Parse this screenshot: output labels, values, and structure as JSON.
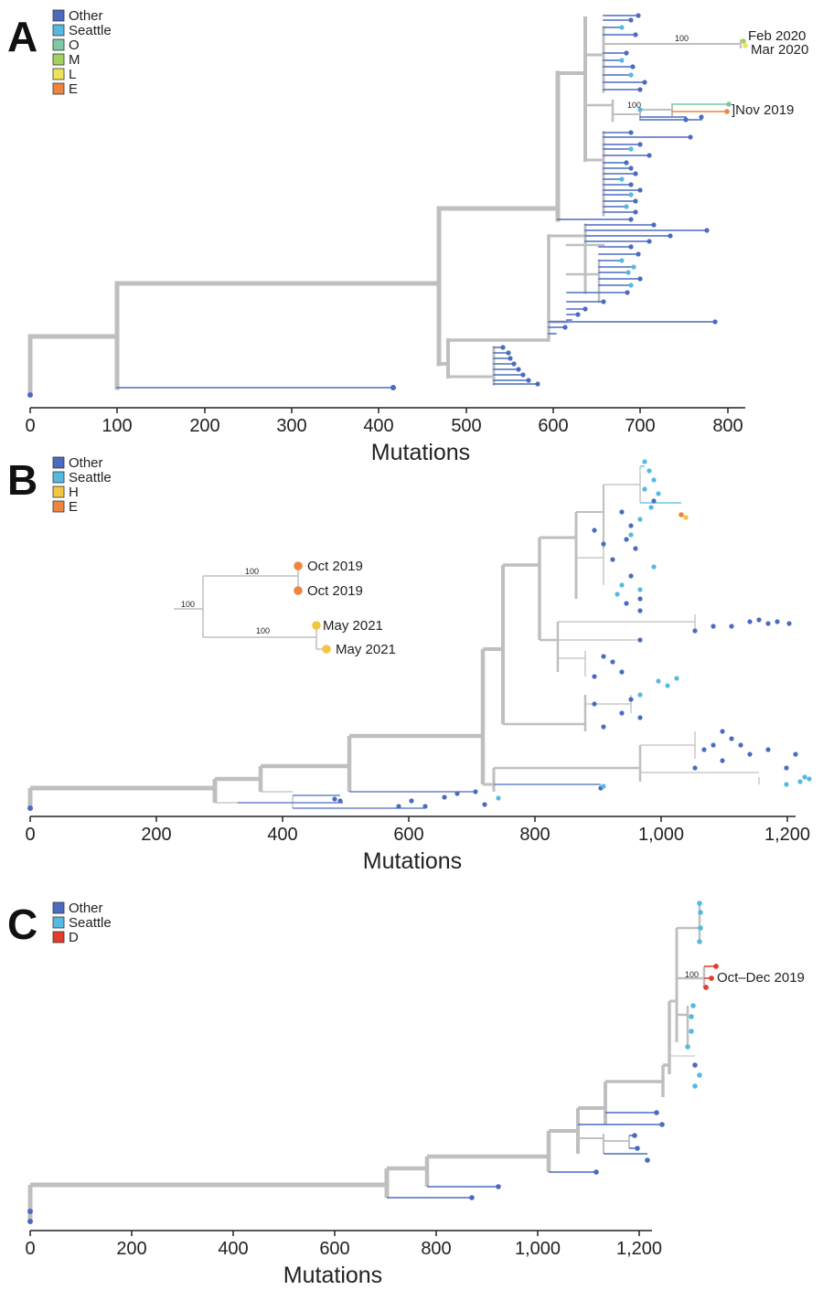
{
  "colors": {
    "Other": "#4a6bc0",
    "Seattle": "#55b9e0",
    "O": "#7cc9a4",
    "M": "#a4d15d",
    "L": "#eee35a",
    "E": "#ef8440",
    "H": "#f2c642",
    "D": "#e33b2c",
    "backbone": "#bfbfbf",
    "text": "#222222"
  },
  "panels": [
    {
      "label": "A",
      "legend": [
        "Other",
        "Seattle",
        "O",
        "M",
        "L",
        "E"
      ],
      "axis_title": "Mutations",
      "ticks": [
        "0",
        "100",
        "200",
        "300",
        "400",
        "500",
        "600",
        "700",
        "800"
      ],
      "bootstrap": [
        "100",
        "100"
      ],
      "annotations": [
        "Feb 2020",
        "Mar 2020",
        "]Nov 2019"
      ]
    },
    {
      "label": "B",
      "legend": [
        "Other",
        "Seattle",
        "H",
        "E"
      ],
      "axis_title": "Mutations",
      "ticks": [
        "0",
        "200",
        "400",
        "600",
        "800",
        "1,000",
        "1,200"
      ],
      "inset": {
        "bootstrap": [
          "100",
          "100",
          "100"
        ],
        "tips": [
          "Oct 2019",
          "Oct 2019",
          "May 2021",
          "May 2021"
        ]
      }
    },
    {
      "label": "C",
      "legend": [
        "Other",
        "Seattle",
        "D"
      ],
      "axis_title": "Mutations",
      "ticks": [
        "0",
        "200",
        "400",
        "600",
        "800",
        "1,000",
        "1,200"
      ],
      "bootstrap": [
        "100"
      ],
      "annotations": [
        "Oct–Dec 2019"
      ]
    }
  ]
}
